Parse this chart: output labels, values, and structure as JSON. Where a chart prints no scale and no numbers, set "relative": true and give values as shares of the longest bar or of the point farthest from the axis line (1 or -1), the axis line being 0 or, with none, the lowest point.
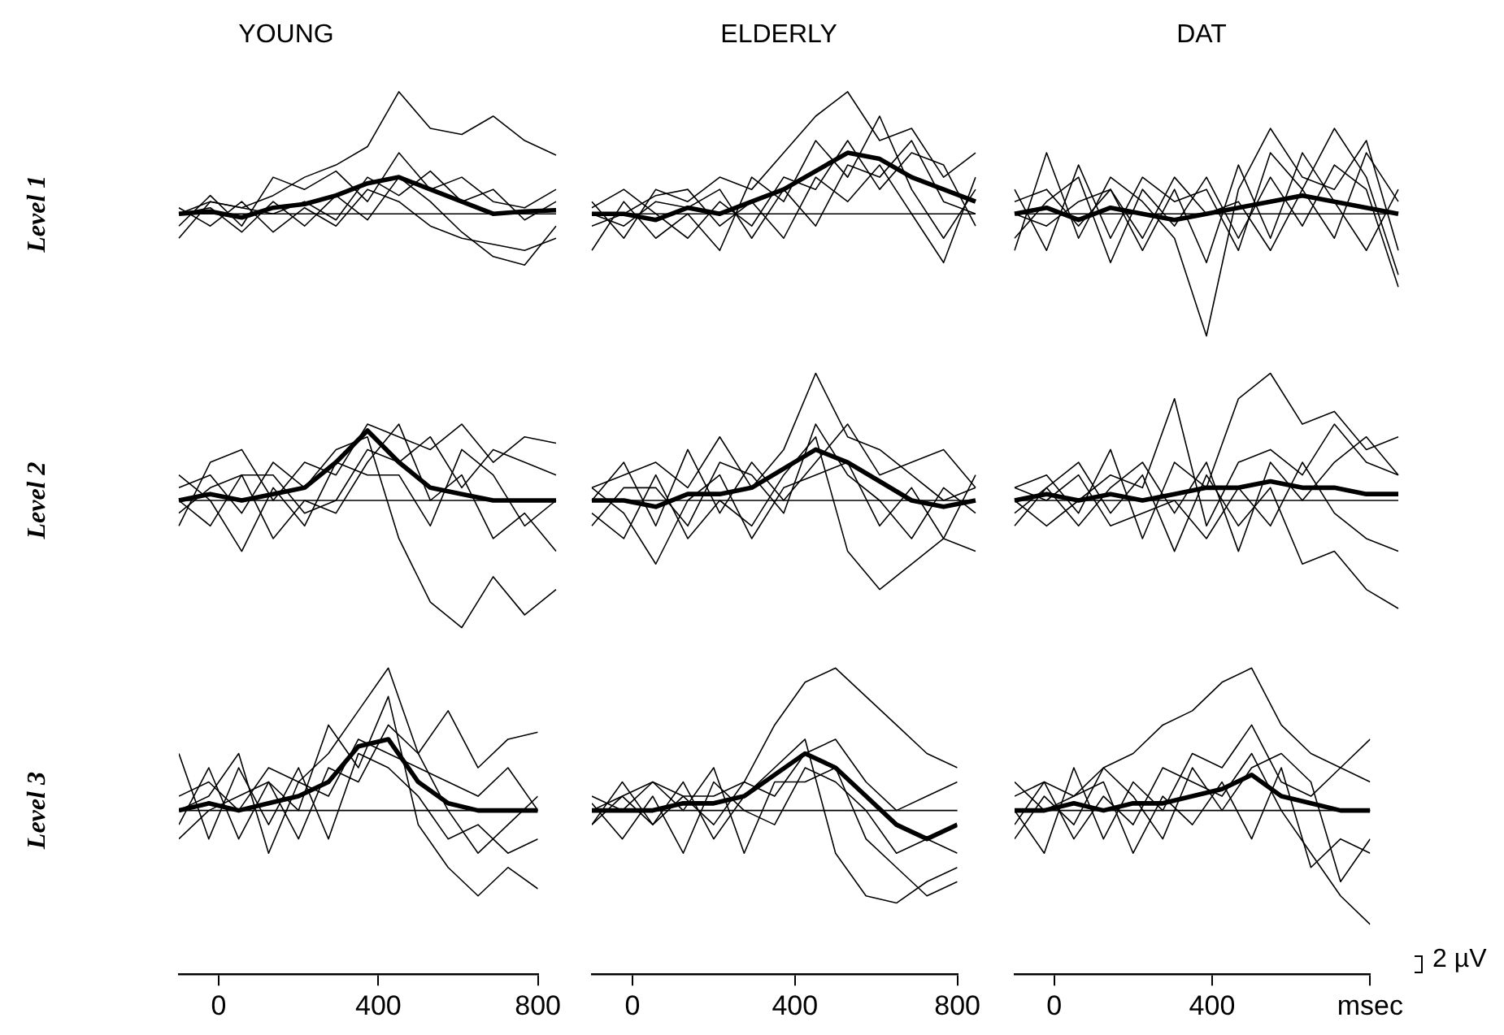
{
  "chart_data": [
    {
      "type": "line",
      "title": "YOUNG",
      "ylabel": "Level 1",
      "relative": true,
      "tick_labels": false,
      "categories": [
        null,
        null,
        null,
        null,
        null,
        null,
        null,
        null,
        null,
        null,
        null,
        null,
        null
      ],
      "series": [
        {
          "color": "#000000",
          "values": [
            0,
            0.02,
            -0.03,
            0.05,
            0.08,
            0.15,
            0.25,
            0.3,
            0.2,
            0.1,
            0.0,
            0.02,
            0.03
          ]
        },
        {
          "color": "#000000",
          "values": [
            0,
            0.1,
            0.05,
            0.15,
            0.3,
            0.4,
            0.55,
            1.0,
            0.7,
            0.65,
            0.8,
            0.6,
            0.48
          ]
        },
        {
          "color": "#000000",
          "values": [
            -0.1,
            0.15,
            -0.1,
            0.3,
            0.2,
            0.35,
            0.1,
            0.5,
            0.2,
            0.3,
            0.1,
            0.05,
            0.2
          ]
        },
        {
          "color": "#000000",
          "values": [
            0.05,
            -0.1,
            0.1,
            -0.15,
            0.05,
            -0.1,
            0.2,
            0.1,
            -0.1,
            -0.2,
            -0.25,
            -0.3,
            -0.2
          ]
        },
        {
          "color": "#000000",
          "values": [
            0,
            0.05,
            -0.15,
            0.1,
            -0.1,
            0.15,
            -0.05,
            0.3,
            0.1,
            -0.15,
            -0.35,
            -0.42,
            -0.1
          ]
        },
        {
          "color": "#000000",
          "values": [
            -0.2,
            0.1,
            0.05,
            0.0,
            0.1,
            -0.05,
            0.3,
            0.15,
            0.35,
            0.1,
            0.2,
            -0.05,
            0.1
          ]
        }
      ]
    },
    {
      "type": "line",
      "title": "ELDERLY",
      "relative": true,
      "tick_labels": false,
      "categories": [
        null,
        null,
        null,
        null,
        null,
        null,
        null,
        null,
        null,
        null,
        null,
        null,
        null
      ],
      "series": [
        {
          "color": "#000000",
          "values": [
            0,
            0,
            -0.05,
            0.05,
            0.0,
            0.1,
            0.2,
            0.35,
            0.5,
            0.45,
            0.3,
            0.2,
            0.1
          ]
        },
        {
          "color": "#000000",
          "values": [
            0.1,
            -0.2,
            0.2,
            0.1,
            0.3,
            0.2,
            0.5,
            0.8,
            1.0,
            0.6,
            0.7,
            0.3,
            0.5
          ]
        },
        {
          "color": "#000000",
          "values": [
            -0.3,
            0.1,
            -0.2,
            0.0,
            -0.3,
            0.3,
            0.1,
            0.6,
            0.3,
            0.8,
            0.2,
            -0.2,
            0.2
          ]
        },
        {
          "color": "#000000",
          "values": [
            0.05,
            0.2,
            0.0,
            -0.2,
            0.1,
            -0.1,
            0.3,
            0.2,
            0.6,
            0.2,
            0.5,
            0.4,
            -0.1
          ]
        },
        {
          "color": "#000000",
          "values": [
            -0.1,
            0.0,
            0.15,
            0.2,
            -0.1,
            0.1,
            -0.2,
            0.3,
            0.1,
            0.4,
            0.0,
            -0.4,
            0.3
          ]
        },
        {
          "color": "#000000",
          "values": [
            0.0,
            -0.1,
            0.1,
            0.05,
            0.2,
            -0.2,
            0.2,
            -0.1,
            0.4,
            0.3,
            0.6,
            0.1,
            0.0
          ]
        }
      ]
    },
    {
      "type": "line",
      "title": "DAT",
      "relative": true,
      "tick_labels": false,
      "categories": [
        null,
        null,
        null,
        null,
        null,
        null,
        null,
        null,
        null,
        null,
        null,
        null,
        null
      ],
      "series": [
        {
          "color": "#000000",
          "values": [
            0,
            0.05,
            -0.05,
            0.05,
            0,
            -0.05,
            0,
            0.05,
            0.1,
            0.15,
            0.1,
            0.05,
            0
          ]
        },
        {
          "color": "#000000",
          "values": [
            -0.3,
            0.5,
            -0.2,
            0.3,
            0.1,
            -0.2,
            -1.0,
            0.2,
            0.7,
            0.3,
            0.2,
            0.6,
            -0.3
          ]
        },
        {
          "color": "#000000",
          "values": [
            0.2,
            -0.3,
            0.4,
            -0.2,
            0.3,
            0.1,
            0.2,
            -0.3,
            0.5,
            0.2,
            0.7,
            0.3,
            -0.5
          ]
        },
        {
          "color": "#000000",
          "values": [
            0.1,
            0.2,
            -0.1,
            0.2,
            -0.3,
            0.2,
            -0.4,
            0.4,
            -0.2,
            0.5,
            0.1,
            -0.3,
            0.2
          ]
        },
        {
          "color": "#000000",
          "values": [
            -0.2,
            0.1,
            0.3,
            -0.4,
            0.2,
            -0.1,
            0.3,
            -0.2,
            0.3,
            -0.1,
            0.4,
            0.2,
            -0.6
          ]
        },
        {
          "color": "#000000",
          "values": [
            0.0,
            -0.1,
            0.1,
            0.2,
            -0.2,
            0.3,
            0.0,
            0.1,
            -0.3,
            0.2,
            -0.2,
            0.5,
            0.1
          ]
        }
      ]
    },
    {
      "type": "line",
      "ylabel": "Level 2",
      "relative": true,
      "tick_labels": false,
      "categories": [
        null,
        null,
        null,
        null,
        null,
        null,
        null,
        null,
        null,
        null,
        null,
        null,
        null
      ],
      "series": [
        {
          "color": "#000000",
          "values": [
            0,
            0.05,
            0.0,
            0.05,
            0.1,
            0.3,
            0.55,
            0.3,
            0.1,
            0.05,
            0.0,
            0.0,
            0.0
          ]
        },
        {
          "color": "#000000",
          "values": [
            0.1,
            0.2,
            -0.1,
            0.3,
            0.1,
            0.4,
            0.5,
            -0.3,
            -0.8,
            -1.0,
            -0.6,
            -0.9,
            -0.7
          ]
        },
        {
          "color": "#000000",
          "values": [
            -0.2,
            0.3,
            0.4,
            0.0,
            0.3,
            0.2,
            0.6,
            0.5,
            0.4,
            0.6,
            0.3,
            0.5,
            0.45
          ]
        },
        {
          "color": "#000000",
          "values": [
            0.0,
            -0.2,
            0.2,
            -0.3,
            0.0,
            -0.1,
            0.3,
            0.6,
            0.0,
            0.2,
            -0.3,
            -0.1,
            -0.4
          ]
        },
        {
          "color": "#000000",
          "values": [
            0.2,
            0.0,
            -0.4,
            0.1,
            -0.2,
            0.3,
            0.2,
            0.2,
            -0.2,
            0.4,
            0.2,
            -0.2,
            0.0
          ]
        },
        {
          "color": "#000000",
          "values": [
            -0.1,
            0.1,
            0.2,
            0.2,
            -0.1,
            0.0,
            0.4,
            0.3,
            0.5,
            0.1,
            0.4,
            0.3,
            0.2
          ]
        }
      ]
    },
    {
      "type": "line",
      "relative": true,
      "tick_labels": false,
      "categories": [
        null,
        null,
        null,
        null,
        null,
        null,
        null,
        null,
        null,
        null,
        null,
        null,
        null
      ],
      "series": [
        {
          "color": "#000000",
          "values": [
            0,
            0,
            -0.05,
            0.05,
            0.05,
            0.1,
            0.25,
            0.4,
            0.3,
            0.15,
            0.0,
            -0.05,
            0.0
          ]
        },
        {
          "color": "#000000",
          "values": [
            0.1,
            0.2,
            0.3,
            0.1,
            0.5,
            0.1,
            0.4,
            1.0,
            0.5,
            0.4,
            0.2,
            0.0,
            0.1
          ]
        },
        {
          "color": "#000000",
          "values": [
            -0.1,
            -0.3,
            0.2,
            -0.3,
            0.0,
            -0.2,
            0.2,
            0.5,
            -0.4,
            -0.7,
            -0.5,
            -0.3,
            -0.4
          ]
        },
        {
          "color": "#000000",
          "values": [
            0.0,
            0.3,
            -0.2,
            0.4,
            -0.1,
            0.3,
            0.0,
            0.3,
            0.6,
            0.2,
            0.3,
            0.4,
            0.1
          ]
        },
        {
          "color": "#000000",
          "values": [
            0.1,
            -0.1,
            -0.5,
            0.0,
            0.2,
            -0.3,
            0.1,
            0.2,
            0.3,
            -0.2,
            0.1,
            -0.3,
            0.2
          ]
        },
        {
          "color": "#000000",
          "values": [
            -0.2,
            0.1,
            0.1,
            -0.2,
            0.3,
            0.2,
            -0.1,
            0.6,
            0.2,
            0.0,
            -0.3,
            0.1,
            -0.1
          ]
        }
      ]
    },
    {
      "type": "line",
      "relative": true,
      "tick_labels": false,
      "categories": [
        null,
        null,
        null,
        null,
        null,
        null,
        null,
        null,
        null,
        null,
        null,
        null,
        null
      ],
      "series": [
        {
          "color": "#000000",
          "values": [
            0,
            0.05,
            0.0,
            0.05,
            0.0,
            0.05,
            0.1,
            0.1,
            0.15,
            0.1,
            0.1,
            0.05,
            0.05
          ]
        },
        {
          "color": "#000000",
          "values": [
            0.1,
            0.2,
            -0.1,
            0.4,
            -0.3,
            0.3,
            0.1,
            0.8,
            1.0,
            0.6,
            0.7,
            0.4,
            0.5
          ]
        },
        {
          "color": "#000000",
          "values": [
            -0.2,
            0.1,
            0.3,
            -0.1,
            0.2,
            -0.4,
            0.2,
            -0.2,
            0.1,
            -0.5,
            -0.4,
            -0.7,
            -0.85
          ]
        },
        {
          "color": "#000000",
          "values": [
            0.0,
            -0.2,
            0.0,
            0.2,
            0.1,
            0.8,
            -0.2,
            0.3,
            0.4,
            0.2,
            0.6,
            0.3,
            0.2
          ]
        },
        {
          "color": "#000000",
          "values": [
            0.1,
            0.0,
            0.2,
            -0.2,
            -0.1,
            0.0,
            -0.3,
            0.1,
            -0.2,
            0.3,
            -0.1,
            -0.3,
            -0.4
          ]
        },
        {
          "color": "#000000",
          "values": [
            -0.1,
            0.1,
            -0.2,
            0.1,
            0.3,
            -0.1,
            0.3,
            -0.4,
            0.3,
            0.0,
            0.3,
            0.5,
            0.2
          ]
        }
      ]
    },
    {
      "type": "line",
      "ylabel": "Level 3",
      "relative": true,
      "tick_labels": "x",
      "xlim": [
        -100,
        800
      ],
      "xticks": [
        0,
        400,
        800
      ],
      "x": [
        -100,
        -25,
        50,
        125,
        200,
        275,
        350,
        425,
        500,
        575,
        650,
        725,
        800
      ],
      "series": [
        {
          "color": "#000000",
          "values": [
            0,
            0.05,
            0.0,
            0.05,
            0.1,
            0.2,
            0.45,
            0.5,
            0.2,
            0.05,
            0.0,
            0.0,
            0.0
          ]
        },
        {
          "color": "#000000",
          "values": [
            0.1,
            0.2,
            0.0,
            0.3,
            0.2,
            0.4,
            0.7,
            1.0,
            0.4,
            0.7,
            0.3,
            0.5,
            0.55
          ]
        },
        {
          "color": "#000000",
          "values": [
            -0.1,
            0.3,
            -0.2,
            0.2,
            0.0,
            0.6,
            0.3,
            0.8,
            -0.1,
            -0.4,
            -0.6,
            -0.4,
            -0.55
          ]
        },
        {
          "color": "#000000",
          "values": [
            0.4,
            -0.2,
            0.3,
            -0.1,
            0.3,
            -0.2,
            0.4,
            0.3,
            0.1,
            -0.2,
            -0.1,
            -0.3,
            -0.2
          ]
        },
        {
          "color": "#000000",
          "values": [
            0.0,
            0.1,
            0.4,
            -0.3,
            0.2,
            0.1,
            0.5,
            0.4,
            0.3,
            0.2,
            0.1,
            0.3,
            0.0
          ]
        },
        {
          "color": "#000000",
          "values": [
            -0.2,
            0.0,
            0.1,
            0.2,
            -0.2,
            0.3,
            0.2,
            0.6,
            0.4,
            0.0,
            -0.3,
            -0.1,
            0.1
          ]
        }
      ]
    },
    {
      "type": "line",
      "relative": true,
      "tick_labels": "x",
      "xlim": [
        -100,
        800
      ],
      "xticks": [
        0,
        400,
        800
      ],
      "x": [
        -100,
        -25,
        50,
        125,
        200,
        275,
        350,
        425,
        500,
        575,
        650,
        725,
        800
      ],
      "series": [
        {
          "color": "#000000",
          "values": [
            0,
            0,
            0.0,
            0.05,
            0.05,
            0.1,
            0.25,
            0.4,
            0.3,
            0.1,
            -0.1,
            -0.2,
            -0.1
          ]
        },
        {
          "color": "#000000",
          "values": [
            0.1,
            0.0,
            0.2,
            0.1,
            0.1,
            0.2,
            0.6,
            0.9,
            1.0,
            0.8,
            0.6,
            0.4,
            0.3
          ]
        },
        {
          "color": "#000000",
          "values": [
            -0.1,
            0.2,
            -0.1,
            0.2,
            -0.2,
            0.1,
            0.3,
            0.5,
            -0.3,
            -0.6,
            -0.65,
            -0.5,
            -0.4
          ]
        },
        {
          "color": "#000000",
          "values": [
            0.05,
            -0.2,
            0.1,
            -0.3,
            0.2,
            0.0,
            -0.1,
            0.3,
            0.2,
            0.0,
            -0.3,
            -0.2,
            -0.3
          ]
        },
        {
          "color": "#000000",
          "values": [
            0.0,
            0.1,
            -0.1,
            0.1,
            -0.1,
            0.2,
            0.1,
            0.4,
            0.5,
            0.2,
            0.0,
            0.1,
            0.2
          ]
        },
        {
          "color": "#000000",
          "values": [
            -0.1,
            0.1,
            0.2,
            0.0,
            0.3,
            -0.3,
            0.2,
            0.2,
            0.3,
            -0.2,
            -0.4,
            -0.6,
            -0.5
          ]
        }
      ]
    },
    {
      "type": "line",
      "relative": true,
      "tick_labels": "x",
      "xlim": [
        -100,
        800
      ],
      "xticks": [
        0,
        400,
        {
          "value": 800,
          "label": "msec"
        }
      ],
      "x": [
        -100,
        -25,
        50,
        125,
        200,
        275,
        350,
        425,
        500,
        575,
        650,
        725,
        800
      ],
      "annotations": [
        "2 µV"
      ],
      "series": [
        {
          "color": "#000000",
          "values": [
            0,
            0,
            0.05,
            0.0,
            0.05,
            0.05,
            0.1,
            0.15,
            0.25,
            0.1,
            0.05,
            0.0,
            0.0
          ]
        },
        {
          "color": "#000000",
          "values": [
            0.1,
            0.2,
            0.1,
            0.3,
            0.4,
            0.6,
            0.7,
            0.9,
            1.0,
            0.6,
            0.4,
            0.3,
            0.2
          ]
        },
        {
          "color": "#000000",
          "values": [
            -0.1,
            0.2,
            -0.2,
            0.1,
            -0.1,
            0.3,
            0.2,
            0.1,
            0.4,
            0.0,
            -0.3,
            -0.6,
            -0.8
          ]
        },
        {
          "color": "#000000",
          "values": [
            0.0,
            -0.3,
            0.3,
            -0.2,
            0.2,
            0.0,
            0.4,
            0.3,
            0.6,
            0.2,
            0.1,
            0.3,
            0.5
          ]
        },
        {
          "color": "#000000",
          "values": [
            0.2,
            0.0,
            0.1,
            0.2,
            -0.3,
            0.1,
            -0.1,
            0.2,
            -0.2,
            0.3,
            -0.4,
            -0.2,
            -0.3
          ]
        },
        {
          "color": "#000000",
          "values": [
            -0.2,
            0.1,
            -0.1,
            0.3,
            0.1,
            -0.2,
            0.3,
            0.0,
            0.3,
            0.4,
            0.2,
            -0.5,
            -0.2
          ]
        }
      ]
    }
  ]
}
